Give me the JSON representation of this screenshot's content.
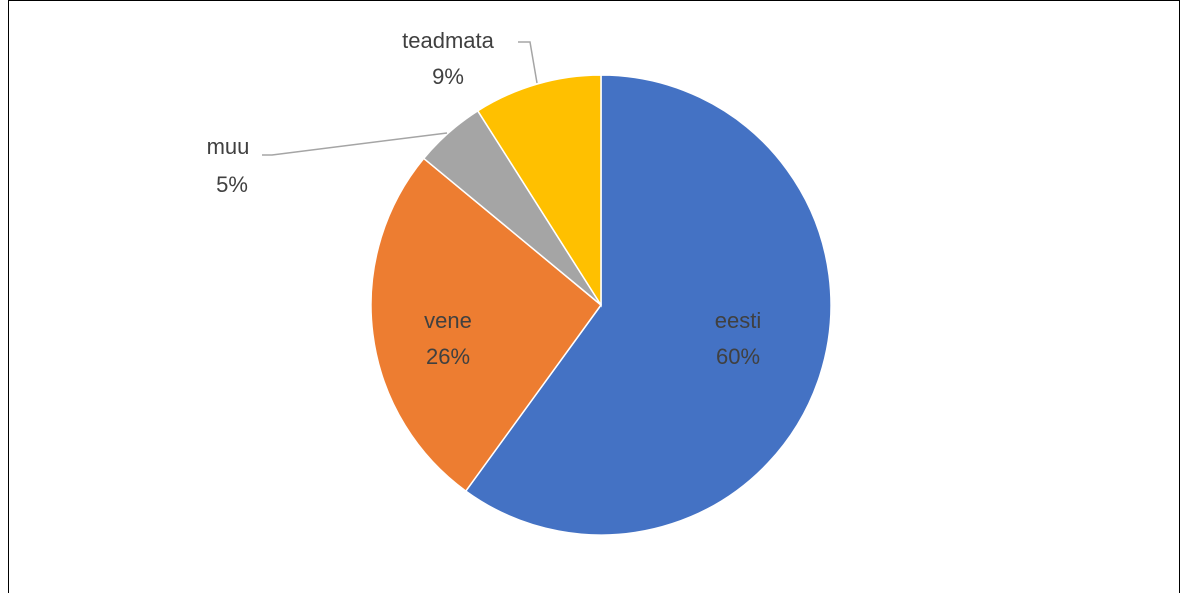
{
  "chart_data": {
    "type": "pie",
    "categories": [
      "eesti",
      "vene",
      "muu",
      "teadmata"
    ],
    "values": [
      60,
      26,
      5,
      9
    ],
    "value_labels": [
      "60%",
      "26%",
      "5%",
      "9%"
    ],
    "colors": [
      "#4472c4",
      "#ed7d31",
      "#a5a5a5",
      "#ffc000"
    ]
  }
}
